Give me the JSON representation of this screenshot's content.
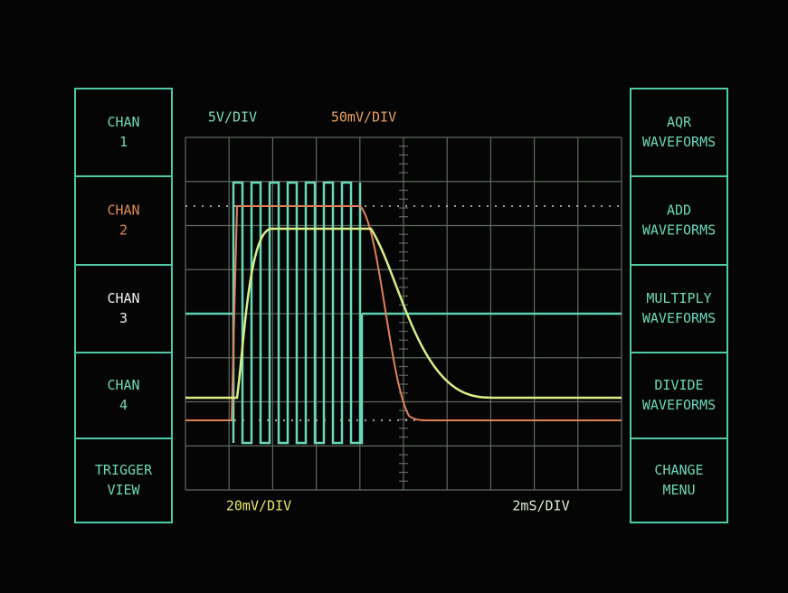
{
  "left_menu": [
    {
      "line1": "CHAN",
      "line2": "1"
    },
    {
      "line1": "CHAN",
      "line2": "2"
    },
    {
      "line1": "CHAN",
      "line2": "3"
    },
    {
      "line1": "CHAN",
      "line2": "4"
    },
    {
      "line1": "TRIGGER",
      "line2": "VIEW"
    }
  ],
  "right_menu": [
    {
      "line1": "AQR",
      "line2": "WAVEFORMS"
    },
    {
      "line1": "ADD",
      "line2": "WAVEFORMS"
    },
    {
      "line1": "MULTIPLY",
      "line2": "WAVEFORMS"
    },
    {
      "line1": "DIVIDE",
      "line2": "WAVEFORMS"
    },
    {
      "line1": "CHANGE",
      "line2": "MENU"
    }
  ],
  "scale_labels": {
    "chan1": "5V/DIV",
    "chan2": "50mV/DIV",
    "chan4": "20mV/DIV",
    "time": "2mS/DIV"
  }
}
